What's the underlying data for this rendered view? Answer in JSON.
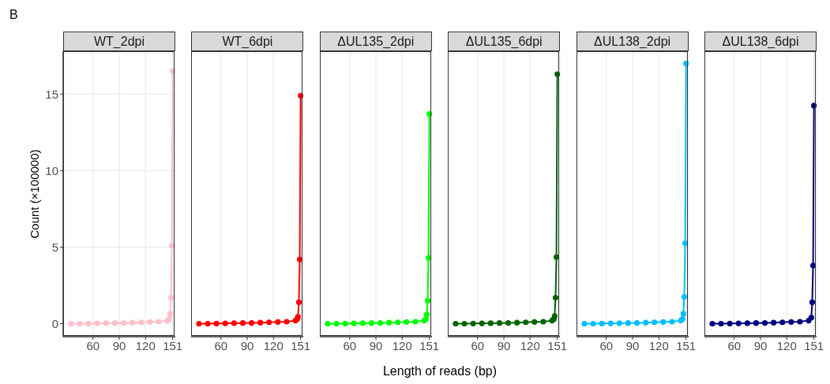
{
  "chart_data": [
    {
      "type": "line",
      "title": "WT_2dpi",
      "ylabel": "Count (×100000)",
      "annotations": [
        "B"
      ],
      "x": [
        35,
        45,
        55,
        65,
        75,
        85,
        95,
        105,
        115,
        125,
        135,
        145,
        147,
        148,
        149,
        150,
        151
      ],
      "xlim": [
        26,
        154
      ],
      "xticks": [
        60,
        90,
        120,
        151
      ],
      "ylim": [
        -0.85,
        17.8
      ],
      "yticks": [
        0,
        5,
        10,
        15
      ],
      "grid": true,
      "marker": "circle",
      "series": [
        {
          "color": "#ffc0cb",
          "values": [
            0,
            0,
            0.01,
            0.02,
            0.03,
            0.04,
            0.05,
            0.07,
            0.09,
            0.11,
            0.13,
            0.2,
            0.3,
            0.65,
            1.7,
            5.1,
            16.5
          ]
        }
      ]
    },
    {
      "type": "line",
      "title": "WT_6dpi",
      "tick_labels": "x",
      "x": [
        35,
        45,
        55,
        65,
        75,
        85,
        95,
        105,
        115,
        125,
        135,
        145,
        147,
        148,
        149,
        150,
        151
      ],
      "xlim": [
        26,
        154
      ],
      "xticks": [
        60,
        90,
        120,
        151
      ],
      "ylim": [
        -0.85,
        17.8
      ],
      "yticks": [
        0,
        5,
        10,
        15
      ],
      "grid": true,
      "marker": "circle",
      "series": [
        {
          "color": "#ff0000",
          "values": [
            0,
            0,
            0.01,
            0.02,
            0.03,
            0.04,
            0.05,
            0.07,
            0.09,
            0.11,
            0.13,
            0.2,
            0.3,
            0.45,
            1.4,
            4.2,
            14.9
          ]
        }
      ]
    },
    {
      "type": "line",
      "title": "ΔUL135_2dpi",
      "xlabel": "Length of reads (bp)",
      "tick_labels": "x",
      "x": [
        35,
        45,
        55,
        65,
        75,
        85,
        95,
        105,
        115,
        125,
        135,
        145,
        147,
        148,
        149,
        150,
        151
      ],
      "xlim": [
        26,
        154
      ],
      "xticks": [
        60,
        90,
        120,
        151
      ],
      "ylim": [
        -0.85,
        17.8
      ],
      "yticks": [
        0,
        5,
        10,
        15
      ],
      "grid": true,
      "marker": "circle",
      "series": [
        {
          "color": "#00ff00",
          "values": [
            0,
            0,
            0.01,
            0.02,
            0.03,
            0.04,
            0.05,
            0.07,
            0.09,
            0.11,
            0.13,
            0.2,
            0.3,
            0.6,
            1.5,
            4.3,
            13.7
          ]
        }
      ]
    },
    {
      "type": "line",
      "title": "ΔUL135_6dpi",
      "tick_labels": "x",
      "x": [
        35,
        45,
        55,
        65,
        75,
        85,
        95,
        105,
        115,
        125,
        135,
        145,
        147,
        148,
        149,
        150,
        151
      ],
      "xlim": [
        26,
        154
      ],
      "xticks": [
        60,
        90,
        120,
        151
      ],
      "ylim": [
        -0.85,
        17.8
      ],
      "yticks": [
        0,
        5,
        10,
        15
      ],
      "grid": true,
      "marker": "circle",
      "series": [
        {
          "color": "#006400",
          "values": [
            0,
            0,
            0.01,
            0.02,
            0.03,
            0.04,
            0.05,
            0.07,
            0.09,
            0.11,
            0.13,
            0.2,
            0.3,
            0.5,
            1.7,
            4.35,
            16.3
          ]
        }
      ]
    },
    {
      "type": "line",
      "title": "ΔUL138_2dpi",
      "tick_labels": "x",
      "x": [
        35,
        45,
        55,
        65,
        75,
        85,
        95,
        105,
        115,
        125,
        135,
        145,
        147,
        148,
        149,
        150,
        151
      ],
      "xlim": [
        26,
        154
      ],
      "xticks": [
        60,
        90,
        120,
        151
      ],
      "ylim": [
        -0.85,
        17.8
      ],
      "yticks": [
        0,
        5,
        10,
        15
      ],
      "grid": true,
      "marker": "circle",
      "series": [
        {
          "color": "#00bfff",
          "values": [
            0,
            0,
            0.01,
            0.02,
            0.03,
            0.04,
            0.05,
            0.07,
            0.09,
            0.11,
            0.13,
            0.2,
            0.3,
            0.65,
            1.75,
            5.25,
            17.0
          ]
        }
      ]
    },
    {
      "type": "line",
      "title": "ΔUL138_6dpi",
      "tick_labels": "x",
      "x": [
        35,
        45,
        55,
        65,
        75,
        85,
        95,
        105,
        115,
        125,
        135,
        145,
        148,
        149,
        150,
        151
      ],
      "xlim": [
        26,
        154
      ],
      "xticks": [
        60,
        90,
        120,
        151
      ],
      "ylim": [
        -0.85,
        17.8
      ],
      "yticks": [
        0,
        5,
        10,
        15
      ],
      "grid": true,
      "marker": "circle",
      "series": [
        {
          "color": "#000080",
          "values": [
            0,
            0,
            0.01,
            0.02,
            0.03,
            0.04,
            0.05,
            0.07,
            0.09,
            0.11,
            0.13,
            0.2,
            0.4,
            1.4,
            3.8,
            14.25
          ]
        }
      ]
    }
  ]
}
